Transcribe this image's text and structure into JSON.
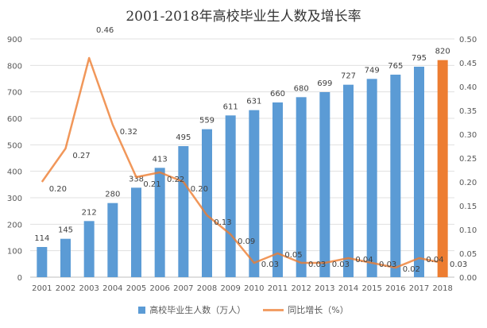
{
  "chart_data": {
    "type": "bar+line",
    "title": "2001-2018年高校毕业生人数及增长率",
    "categories": [
      "2001",
      "2002",
      "2003",
      "2004",
      "2005",
      "2006",
      "2007",
      "2008",
      "2009",
      "2010",
      "2011",
      "2012",
      "2013",
      "2014",
      "2015",
      "2016",
      "2017",
      "2018"
    ],
    "series": [
      {
        "name": "高校毕业生人数（万人）",
        "type": "bar",
        "axis": "left",
        "color": "#5b9bd5",
        "highlight_color": "#ed7d31",
        "highlight_category": "2018",
        "values": [
          114,
          145,
          212,
          280,
          338,
          413,
          495,
          559,
          611,
          631,
          660,
          680,
          699,
          727,
          749,
          765,
          795,
          820
        ]
      },
      {
        "name": "同比增长（%）",
        "type": "line",
        "axis": "right",
        "color": "#ed7d31",
        "values": [
          0.2,
          0.27,
          0.46,
          0.32,
          0.21,
          0.22,
          0.2,
          0.13,
          0.09,
          0.03,
          0.05,
          0.03,
          0.03,
          0.04,
          0.03,
          0.02,
          0.04,
          0.03
        ]
      }
    ],
    "y_left": {
      "range": [
        0,
        900
      ],
      "ticks": [
        0,
        100,
        200,
        300,
        400,
        500,
        600,
        700,
        800,
        900
      ]
    },
    "y_right": {
      "range": [
        0,
        0.5
      ],
      "ticks": [
        "0.00",
        "0.05",
        "0.10",
        "0.15",
        "0.20",
        "0.25",
        "0.30",
        "0.35",
        "0.40",
        "0.45",
        "0.50"
      ]
    },
    "grid": true,
    "legend": "bottom"
  }
}
